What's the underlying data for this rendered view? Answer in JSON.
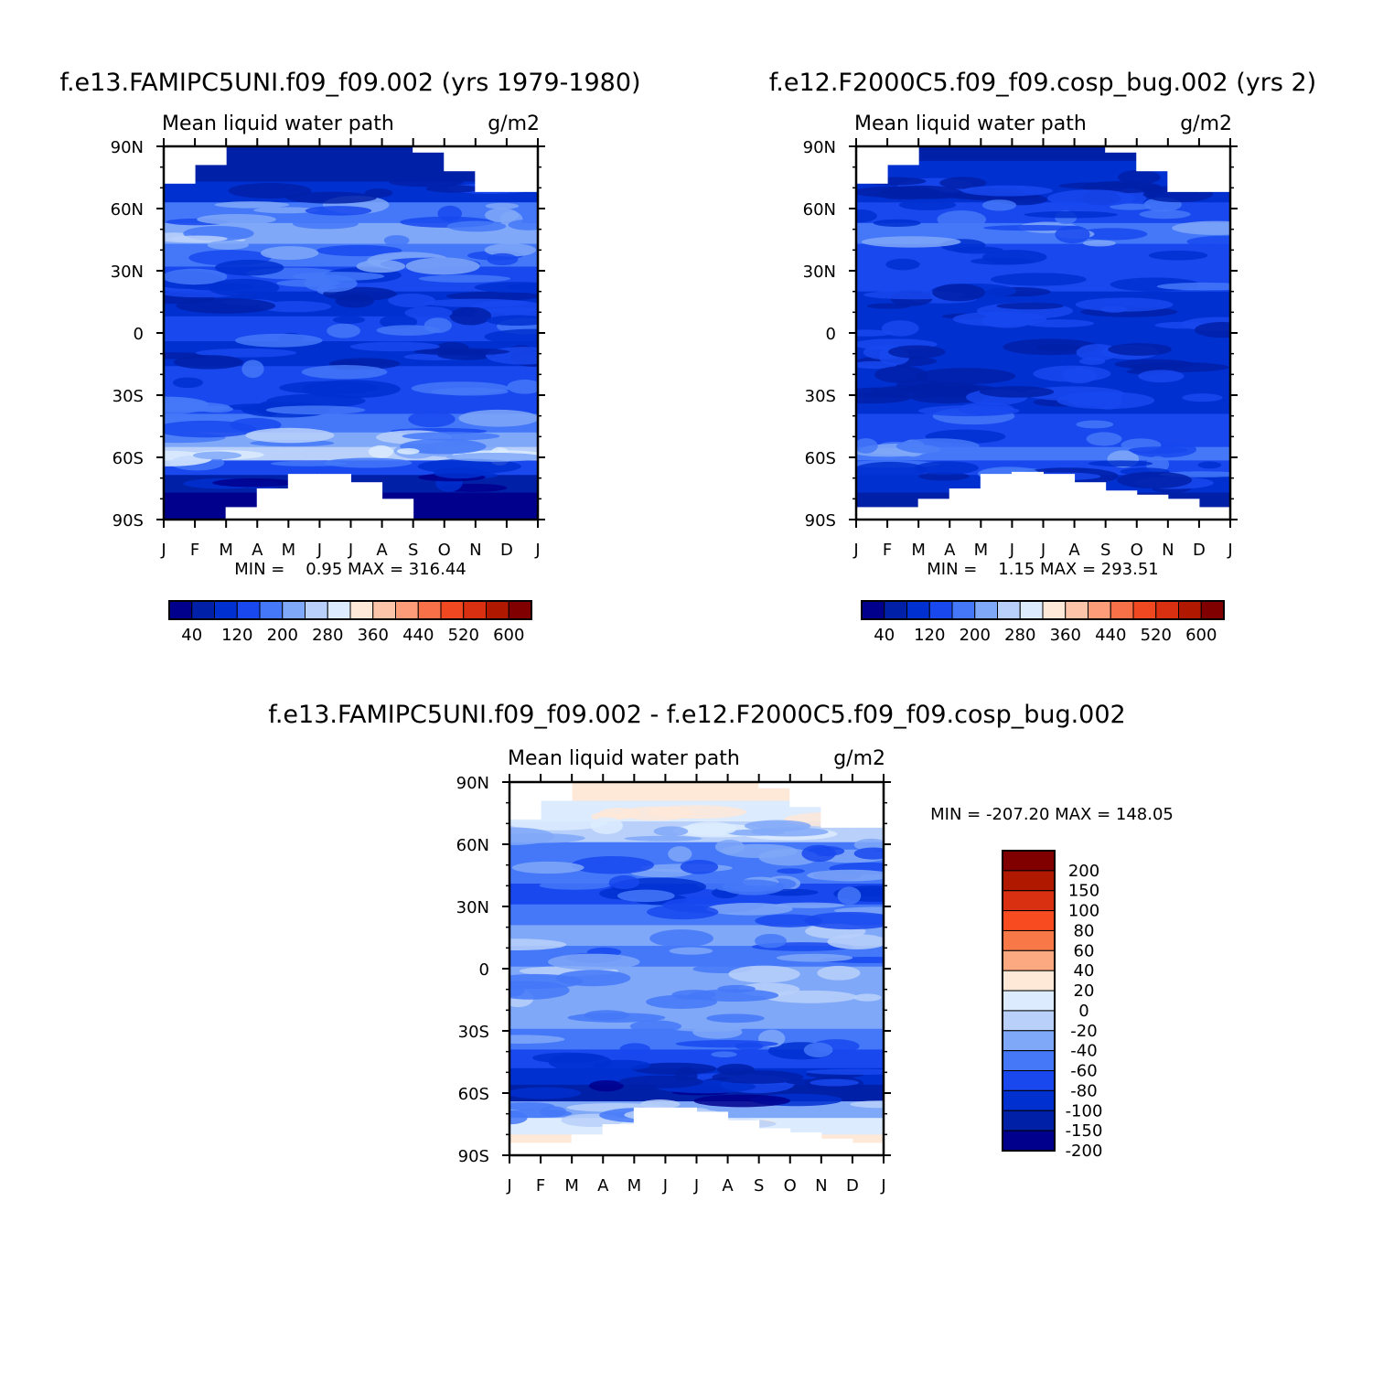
{
  "chart_data": [
    {
      "type": "heatmap",
      "title": "f.e13.FAMIPC5UNI.f09_f09.002 (yrs 1979-1980)",
      "subtitle": "Mean liquid water path",
      "units": "g/m2",
      "x_ticks": [
        "J",
        "F",
        "M",
        "A",
        "M",
        "J",
        "J",
        "A",
        "S",
        "O",
        "N",
        "D",
        "J"
      ],
      "y_ticks": [
        "90N",
        "60N",
        "30N",
        "0",
        "30S",
        "60S",
        "90S"
      ],
      "stats": "MIN =    0.95 MAX = 316.44",
      "colorbar": {
        "orientation": "horizontal",
        "labels": [
          "40",
          "120",
          "200",
          "280",
          "360",
          "440",
          "520",
          "600"
        ],
        "colors": [
          "#00008c",
          "#0020a8",
          "#0030d0",
          "#1848ee",
          "#4478f8",
          "#80a8f8",
          "#b8d0fa",
          "#dcecfe",
          "#fee8d8",
          "#fcc4a8",
          "#fc9c78",
          "#f87048",
          "#f04820",
          "#d83010",
          "#b01800",
          "#800000"
        ]
      },
      "bands": [
        {
          "lat": 88,
          "level": 1
        },
        {
          "lat": 78,
          "level": 1
        },
        {
          "lat": 68,
          "level": 2
        },
        {
          "lat": 58,
          "level": 4
        },
        {
          "lat": 48,
          "level": 5
        },
        {
          "lat": 38,
          "level": 4
        },
        {
          "lat": 26,
          "level": 3
        },
        {
          "lat": 14,
          "level": 2
        },
        {
          "lat": 2,
          "level": 3
        },
        {
          "lat": -10,
          "level": 2
        },
        {
          "lat": -22,
          "level": 3
        },
        {
          "lat": -34,
          "level": 3
        },
        {
          "lat": -44,
          "level": 4
        },
        {
          "lat": -52,
          "level": 5
        },
        {
          "lat": -58,
          "level": 6
        },
        {
          "lat": -65,
          "level": 3
        },
        {
          "lat": -72,
          "level": 1
        },
        {
          "lat": -82,
          "level": 0
        }
      ]
    },
    {
      "type": "heatmap",
      "title": "f.e12.F2000C5.f09_f09.cosp_bug.002 (yrs 2)",
      "subtitle": "Mean liquid water path",
      "units": "g/m2",
      "x_ticks": [
        "J",
        "F",
        "M",
        "A",
        "M",
        "J",
        "J",
        "A",
        "S",
        "O",
        "N",
        "D",
        "J"
      ],
      "y_ticks": [
        "90N",
        "60N",
        "30N",
        "0",
        "30S",
        "60S",
        "90S"
      ],
      "stats": "MIN =    1.15 MAX = 293.51",
      "colorbar": {
        "orientation": "horizontal",
        "labels": [
          "40",
          "120",
          "200",
          "280",
          "360",
          "440",
          "520",
          "600"
        ],
        "colors": [
          "#00008c",
          "#0020a8",
          "#0030d0",
          "#1848ee",
          "#4478f8",
          "#80a8f8",
          "#b8d0fa",
          "#dcecfe",
          "#fee8d8",
          "#fcc4a8",
          "#fc9c78",
          "#f87048",
          "#f04820",
          "#d83010",
          "#b01800",
          "#800000"
        ]
      },
      "bands": [
        {
          "lat": 88,
          "level": 1
        },
        {
          "lat": 78,
          "level": 2
        },
        {
          "lat": 68,
          "level": 2
        },
        {
          "lat": 58,
          "level": 3
        },
        {
          "lat": 48,
          "level": 4
        },
        {
          "lat": 38,
          "level": 3
        },
        {
          "lat": 26,
          "level": 3
        },
        {
          "lat": 14,
          "level": 2
        },
        {
          "lat": 2,
          "level": 2
        },
        {
          "lat": -10,
          "level": 2
        },
        {
          "lat": -22,
          "level": 2
        },
        {
          "lat": -34,
          "level": 2
        },
        {
          "lat": -44,
          "level": 3
        },
        {
          "lat": -52,
          "level": 3
        },
        {
          "lat": -58,
          "level": 4
        },
        {
          "lat": -65,
          "level": 3
        },
        {
          "lat": -72,
          "level": 2
        },
        {
          "lat": -82,
          "level": 1
        }
      ]
    },
    {
      "type": "heatmap",
      "title": "f.e13.FAMIPC5UNI.f09_f09.002 - f.e12.F2000C5.f09_f09.cosp_bug.002",
      "subtitle": "Mean liquid water path",
      "units": "g/m2",
      "x_ticks": [
        "J",
        "F",
        "M",
        "A",
        "M",
        "J",
        "J",
        "A",
        "S",
        "O",
        "N",
        "D",
        "J"
      ],
      "y_ticks": [
        "90N",
        "60N",
        "30N",
        "0",
        "30S",
        "60S",
        "90S"
      ],
      "stats": "MIN = -207.20 MAX = 148.05",
      "colorbar": {
        "orientation": "vertical",
        "labels": [
          "200",
          "150",
          "100",
          "80",
          "60",
          "40",
          "20",
          "0",
          "-20",
          "-40",
          "-60",
          "-80",
          "-100",
          "-150",
          "-200"
        ],
        "colors": [
          "#800000",
          "#b01800",
          "#d83010",
          "#f84c20",
          "#f87848",
          "#fca880",
          "#fee8d8",
          "#dcecfe",
          "#b8d0fa",
          "#80a8f8",
          "#4478f8",
          "#1848ee",
          "#0030d0",
          "#0020a8",
          "#00008c"
        ]
      },
      "bands": [
        {
          "lat": 86,
          "level": 6
        },
        {
          "lat": 76,
          "level": 7
        },
        {
          "lat": 66,
          "level": 8
        },
        {
          "lat": 56,
          "level": 10
        },
        {
          "lat": 46,
          "level": 10
        },
        {
          "lat": 36,
          "level": 11
        },
        {
          "lat": 26,
          "level": 10
        },
        {
          "lat": 16,
          "level": 9
        },
        {
          "lat": 6,
          "level": 10
        },
        {
          "lat": -4,
          "level": 9
        },
        {
          "lat": -14,
          "level": 9
        },
        {
          "lat": -24,
          "level": 9
        },
        {
          "lat": -34,
          "level": 10
        },
        {
          "lat": -44,
          "level": 11
        },
        {
          "lat": -52,
          "level": 12
        },
        {
          "lat": -60,
          "level": 13
        },
        {
          "lat": -68,
          "level": 9
        },
        {
          "lat": -76,
          "level": 7
        },
        {
          "lat": -84,
          "level": 6
        }
      ]
    }
  ]
}
